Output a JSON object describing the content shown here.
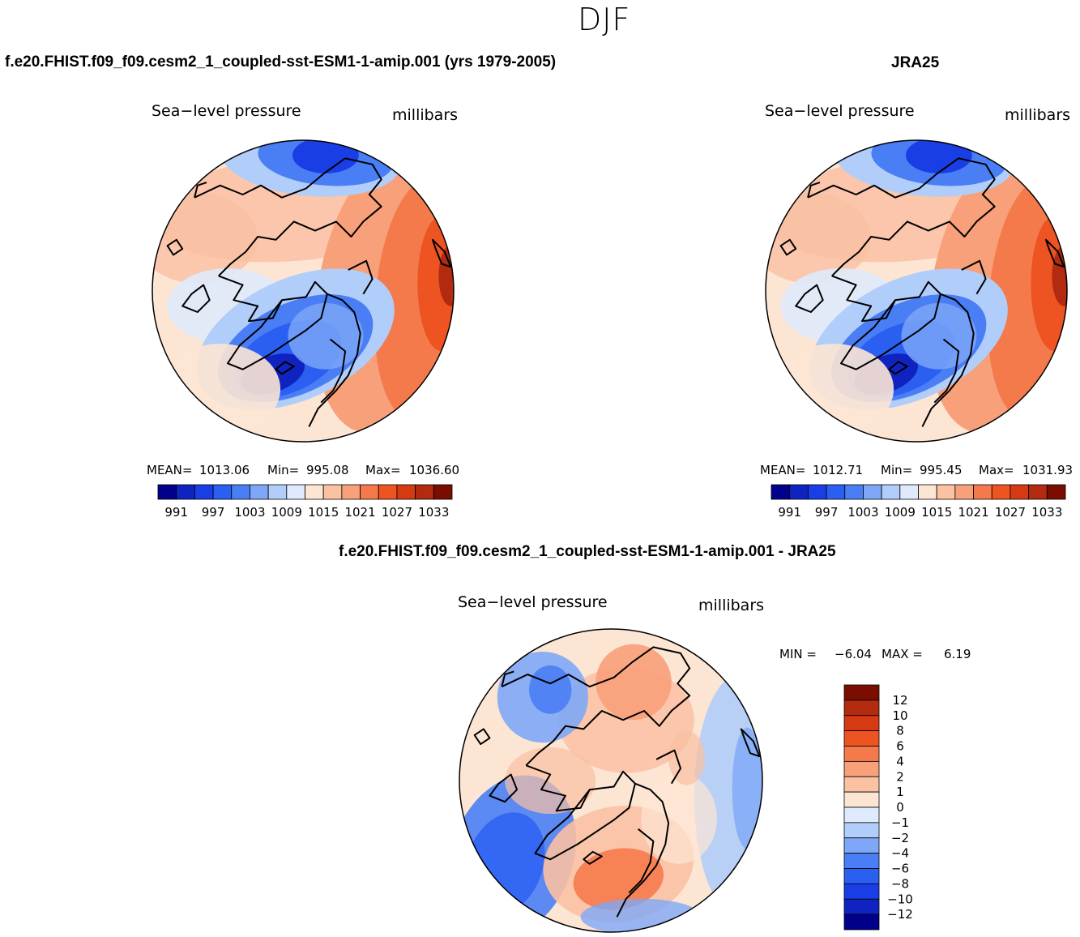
{
  "page": {
    "season": "DJF"
  },
  "panels": [
    {
      "title": "f.e20.FHIST.f09_f09.cesm2_1_coupled-sst-ESM1-1-amip.001 (yrs 1979-2005)",
      "variable": "Sea−level pressure",
      "units": "millibars",
      "stats": {
        "mean_label": "MEAN=",
        "mean": "1013.06",
        "min_label": "Min=",
        "min": "995.08",
        "max_label": "Max=",
        "max": "1036.60"
      }
    },
    {
      "title": "JRA25",
      "variable": "Sea−level pressure",
      "units": "millibars",
      "stats": {
        "mean_label": "MEAN=",
        "mean": "1012.71",
        "min_label": "Min=",
        "min": "995.45",
        "max_label": "Max=",
        "max": "1031.93"
      }
    },
    {
      "title": "f.e20.FHIST.f09_f09.cesm2_1_coupled-sst-ESM1-1-amip.001 - JRA25",
      "variable": "Sea−level pressure",
      "units": "millibars",
      "stats": {
        "min_label": "MIN =",
        "min": "−6.04",
        "max_label": "MAX =",
        "max": "6.19"
      }
    }
  ],
  "chart_data": [
    {
      "type": "heatmap",
      "projection": "north polar stereographic",
      "title": "f.e20.FHIST.f09_f09.cesm2_1_coupled-sst-ESM1-1-amip.001 (yrs 1979-2005)",
      "variable": "Sea-level pressure",
      "units": "millibars",
      "mean": 1013.06,
      "min": 995.08,
      "max": 1036.6,
      "colorbar": {
        "orientation": "horizontal",
        "levels": [
          991,
          994,
          997,
          1000,
          1003,
          1006,
          1009,
          1012,
          1015,
          1018,
          1021,
          1024,
          1027,
          1030,
          1033
        ],
        "tick_labels": [
          "991",
          "997",
          "1003",
          "1009",
          "1015",
          "1021",
          "1027",
          "1033"
        ],
        "colors": [
          "#00008a",
          "#0f23c1",
          "#1a3ee6",
          "#2a5ff2",
          "#4a7ef5",
          "#7ea7f7",
          "#b1cdf9",
          "#dfeafc",
          "#fde5d4",
          "#fac1a3",
          "#f8a07a",
          "#f57a4b",
          "#ee5322",
          "#d63a12",
          "#b22a10",
          "#7a0d00"
        ]
      }
    },
    {
      "type": "heatmap",
      "projection": "north polar stereographic",
      "title": "JRA25",
      "variable": "Sea-level pressure",
      "units": "millibars",
      "mean": 1012.71,
      "min": 995.45,
      "max": 1031.93,
      "colorbar": {
        "orientation": "horizontal",
        "levels": [
          991,
          994,
          997,
          1000,
          1003,
          1006,
          1009,
          1012,
          1015,
          1018,
          1021,
          1024,
          1027,
          1030,
          1033
        ],
        "tick_labels": [
          "991",
          "997",
          "1003",
          "1009",
          "1015",
          "1021",
          "1027",
          "1033"
        ],
        "colors": [
          "#00008a",
          "#0f23c1",
          "#1a3ee6",
          "#2a5ff2",
          "#4a7ef5",
          "#7ea7f7",
          "#b1cdf9",
          "#dfeafc",
          "#fde5d4",
          "#fac1a3",
          "#f8a07a",
          "#f57a4b",
          "#ee5322",
          "#d63a12",
          "#b22a10",
          "#7a0d00"
        ]
      }
    },
    {
      "type": "heatmap",
      "projection": "north polar stereographic",
      "title": "f.e20.FHIST.f09_f09.cesm2_1_coupled-sst-ESM1-1-amip.001 - JRA25",
      "variable": "Sea-level pressure",
      "units": "millibars",
      "min": -6.04,
      "max": 6.19,
      "colorbar": {
        "orientation": "vertical",
        "levels": [
          12,
          10,
          8,
          6,
          4,
          2,
          1,
          0,
          -1,
          -2,
          -4,
          -6,
          -8,
          -10,
          -12
        ],
        "tick_labels": [
          "12",
          "10",
          "8",
          "6",
          "4",
          "2",
          "1",
          "0",
          "−1",
          "−2",
          "−4",
          "−6",
          "−8",
          "−10",
          "−12"
        ],
        "colors": [
          "#7a0d00",
          "#b22a10",
          "#d63a12",
          "#ee5322",
          "#f57a4b",
          "#f8a07a",
          "#fac1a3",
          "#fde5d4",
          "#dfeafc",
          "#b1cdf9",
          "#7ea7f7",
          "#4a7ef5",
          "#2a5ff2",
          "#1a3ee6",
          "#0f23c1",
          "#00008a"
        ]
      }
    }
  ]
}
